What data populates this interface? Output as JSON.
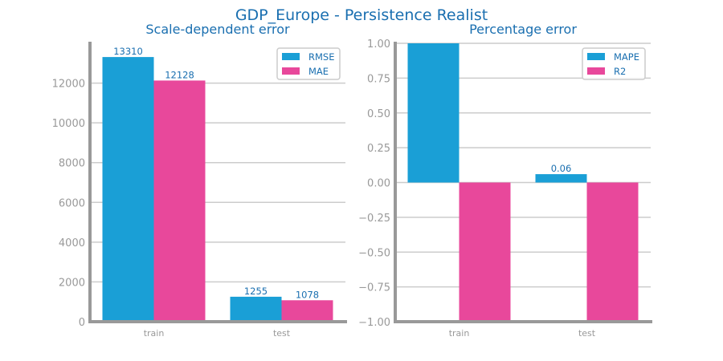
{
  "figure": {
    "title": "GDP_Europe - Persistence Realist"
  },
  "chart_data": [
    {
      "type": "bar",
      "title": "Scale-dependent error",
      "categories": [
        "train",
        "test"
      ],
      "series": [
        {
          "name": "RMSE",
          "color": "#1a9fd6",
          "values": [
            13310,
            1255
          ],
          "labels": [
            "13310",
            "1255"
          ]
        },
        {
          "name": "MAE",
          "color": "#e8489b",
          "values": [
            12128,
            1078
          ],
          "labels": [
            "12128",
            "1078"
          ]
        }
      ],
      "ylim": [
        0,
        14000
      ],
      "yticks": [
        0,
        2000,
        4000,
        6000,
        8000,
        10000,
        12000
      ],
      "ytick_labels": [
        "0",
        "2000",
        "4000",
        "6000",
        "8000",
        "10000",
        "12000"
      ],
      "grid": "horizontal",
      "legend": "top-right",
      "xlabel": "",
      "ylabel": ""
    },
    {
      "type": "bar",
      "title": "Percentage error",
      "categories": [
        "train",
        "test"
      ],
      "series": [
        {
          "name": "MAPE",
          "color": "#1a9fd6",
          "values": [
            1.0,
            0.06
          ],
          "labels": [
            "",
            "0.06"
          ]
        },
        {
          "name": "R2",
          "color": "#e8489b",
          "values": [
            -1.0,
            -1.0
          ],
          "labels": [
            "",
            ""
          ]
        }
      ],
      "ylim": [
        -1.0,
        1.0
      ],
      "yticks": [
        -1.0,
        -0.75,
        -0.5,
        -0.25,
        0.0,
        0.25,
        0.5,
        0.75,
        1.0
      ],
      "ytick_labels": [
        "−1.00",
        "−0.75",
        "−0.50",
        "−0.25",
        "0.00",
        "0.25",
        "0.50",
        "0.75",
        "1.00"
      ],
      "grid": "horizontal",
      "legend": "top-right",
      "xlabel": "",
      "ylabel": ""
    }
  ]
}
